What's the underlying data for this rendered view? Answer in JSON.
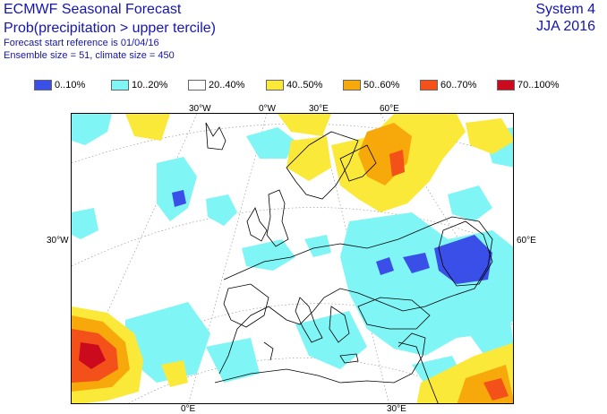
{
  "header": {
    "title": "ECMWF Seasonal Forecast",
    "subtitle": "Prob(precipitation > upper tercile)",
    "forecast_start": "Forecast start reference is 01/04/16",
    "ensemble": "Ensemble size = 51, climate size = 450",
    "system": "System 4",
    "season": "JJA 2016"
  },
  "legend": [
    {
      "label": "0..10%",
      "color": "#3a4fe8"
    },
    {
      "label": "10..20%",
      "color": "#7ff5f5"
    },
    {
      "label": "20..40%",
      "color": "#ffffff"
    },
    {
      "label": "40..50%",
      "color": "#fbe93a"
    },
    {
      "label": "50..60%",
      "color": "#f7a80a"
    },
    {
      "label": "60..70%",
      "color": "#f3501a"
    },
    {
      "label": "70..100%",
      "color": "#cc0a1e"
    }
  ],
  "axis_labels": {
    "top": [
      "30°W",
      "0°W",
      "30°E",
      "60°E"
    ],
    "left": "30°W",
    "right": "60°E",
    "bottom": [
      "0°E",
      "30°E"
    ]
  }
}
